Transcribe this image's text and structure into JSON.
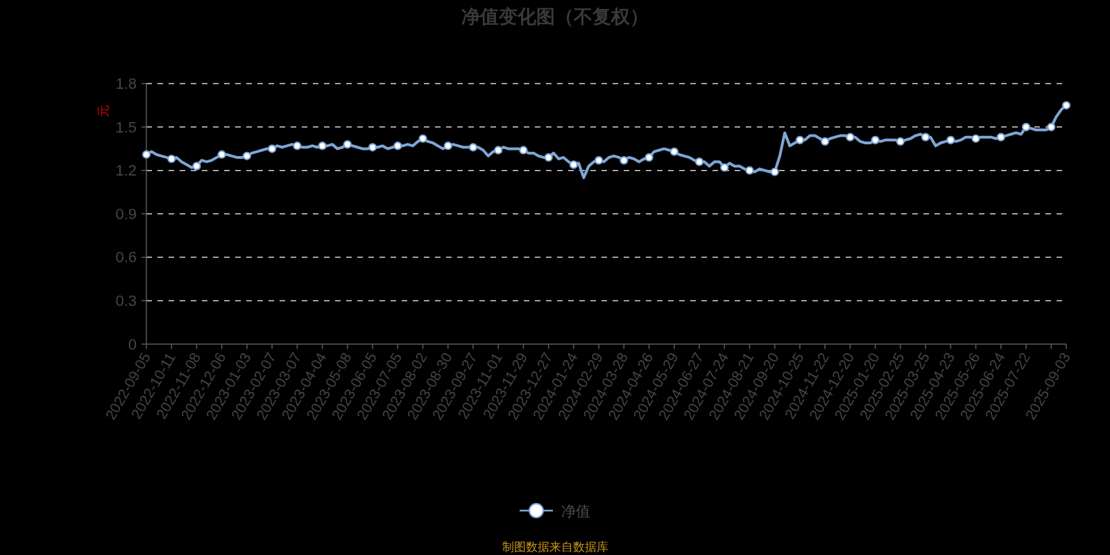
{
  "chart_data": {
    "type": "line",
    "title": "净值变化图（不复权）",
    "ylabel": "元",
    "categories": [
      "2022-09-05",
      null,
      null,
      null,
      null,
      "2022-10-11",
      null,
      null,
      null,
      null,
      "2022-11-08",
      null,
      null,
      null,
      null,
      "2022-12-06",
      null,
      null,
      null,
      null,
      "2023-01-03",
      null,
      null,
      null,
      null,
      "2023-02-07",
      null,
      null,
      null,
      null,
      "2023-03-07",
      null,
      null,
      null,
      null,
      "2023-04-04",
      null,
      null,
      null,
      null,
      "2023-05-08",
      null,
      null,
      null,
      null,
      "2023-06-05",
      null,
      null,
      null,
      null,
      "2023-07-05",
      null,
      null,
      null,
      null,
      "2023-08-02",
      null,
      null,
      null,
      null,
      "2023-08-30",
      null,
      null,
      null,
      null,
      "2023-09-27",
      null,
      null,
      null,
      null,
      "2023-11-01",
      null,
      null,
      null,
      null,
      "2023-11-29",
      null,
      null,
      null,
      null,
      "2023-12-27",
      null,
      null,
      null,
      null,
      "2024-01-24",
      null,
      null,
      null,
      null,
      "2024-02-29",
      null,
      null,
      null,
      null,
      "2024-03-28",
      null,
      null,
      null,
      null,
      "2024-04-26",
      null,
      null,
      null,
      null,
      "2024-05-29",
      null,
      null,
      null,
      null,
      "2024-06-27",
      null,
      null,
      null,
      null,
      "2024-07-24",
      null,
      null,
      null,
      null,
      "2024-08-21",
      null,
      null,
      null,
      null,
      "2024-09-20",
      null,
      null,
      null,
      null,
      "2024-10-25",
      null,
      null,
      null,
      null,
      "2024-11-22",
      null,
      null,
      null,
      null,
      "2024-12-20",
      null,
      null,
      null,
      null,
      "2025-01-20",
      null,
      null,
      null,
      null,
      "2025-02-25",
      null,
      null,
      null,
      null,
      "2025-03-25",
      null,
      null,
      null,
      null,
      "2025-04-23",
      null,
      null,
      null,
      null,
      "2025-05-26",
      null,
      null,
      null,
      null,
      "2025-06-24",
      null,
      null,
      null,
      null,
      "2025-07-22",
      null,
      null,
      null,
      null,
      null,
      null,
      null,
      "2025-09-03"
    ],
    "series": [
      {
        "name": "净值",
        "color": "#7ea6d6",
        "values": [
          1.31,
          1.33,
          1.31,
          1.3,
          1.29,
          1.28,
          1.29,
          1.26,
          1.24,
          1.22,
          1.23,
          1.27,
          1.26,
          1.27,
          1.29,
          1.31,
          1.31,
          1.3,
          1.29,
          1.29,
          1.3,
          1.32,
          1.33,
          1.34,
          1.35,
          1.35,
          1.37,
          1.36,
          1.37,
          1.38,
          1.37,
          1.36,
          1.36,
          1.37,
          1.36,
          1.37,
          1.37,
          1.38,
          1.35,
          1.36,
          1.38,
          1.37,
          1.36,
          1.35,
          1.35,
          1.36,
          1.36,
          1.37,
          1.35,
          1.36,
          1.37,
          1.37,
          1.38,
          1.37,
          1.4,
          1.42,
          1.4,
          1.39,
          1.37,
          1.35,
          1.37,
          1.38,
          1.37,
          1.36,
          1.36,
          1.36,
          1.36,
          1.34,
          1.3,
          1.33,
          1.34,
          1.36,
          1.35,
          1.35,
          1.35,
          1.34,
          1.32,
          1.32,
          1.3,
          1.29,
          1.29,
          1.32,
          1.28,
          1.29,
          1.26,
          1.24,
          1.25,
          1.15,
          1.23,
          1.26,
          1.27,
          1.26,
          1.29,
          1.3,
          1.29,
          1.27,
          1.29,
          1.28,
          1.26,
          1.28,
          1.29,
          1.33,
          1.34,
          1.35,
          1.34,
          1.33,
          1.31,
          1.3,
          1.29,
          1.27,
          1.26,
          1.26,
          1.23,
          1.26,
          1.26,
          1.22,
          1.25,
          1.23,
          1.23,
          1.21,
          1.2,
          1.19,
          1.21,
          1.2,
          1.19,
          1.19,
          1.3,
          1.46,
          1.37,
          1.39,
          1.41,
          1.41,
          1.44,
          1.44,
          1.42,
          1.4,
          1.42,
          1.43,
          1.44,
          1.44,
          1.43,
          1.43,
          1.4,
          1.39,
          1.39,
          1.41,
          1.4,
          1.41,
          1.41,
          1.41,
          1.4,
          1.41,
          1.42,
          1.44,
          1.45,
          1.43,
          1.43,
          1.37,
          1.39,
          1.4,
          1.41,
          1.4,
          1.41,
          1.43,
          1.43,
          1.42,
          1.43,
          1.43,
          1.43,
          1.42,
          1.43,
          1.44,
          1.45,
          1.46,
          1.45,
          1.5,
          1.49,
          1.48,
          1.48,
          1.48,
          1.5,
          1.57,
          1.62,
          1.65
        ]
      },
      {
        "type": "scatter",
        "color": "#7ea6d6",
        "marker": "circle",
        "values": [
          1.31,
          null,
          null,
          null,
          null,
          1.28,
          null,
          null,
          null,
          null,
          1.23,
          null,
          null,
          null,
          null,
          1.31,
          null,
          null,
          null,
          null,
          1.3,
          null,
          null,
          null,
          null,
          1.35,
          null,
          null,
          null,
          null,
          1.37,
          null,
          null,
          null,
          null,
          1.37,
          null,
          null,
          null,
          null,
          1.38,
          null,
          null,
          null,
          null,
          1.36,
          null,
          null,
          null,
          null,
          1.37,
          null,
          null,
          null,
          null,
          1.42,
          null,
          null,
          null,
          null,
          1.37,
          null,
          null,
          null,
          null,
          1.36,
          null,
          null,
          null,
          null,
          1.34,
          null,
          null,
          null,
          null,
          1.34,
          null,
          null,
          null,
          null,
          1.29,
          null,
          null,
          null,
          null,
          1.24,
          null,
          null,
          null,
          null,
          1.27,
          null,
          null,
          null,
          null,
          1.27,
          null,
          null,
          null,
          null,
          1.29,
          null,
          null,
          null,
          null,
          1.33,
          null,
          null,
          null,
          null,
          1.26,
          null,
          null,
          null,
          null,
          1.22,
          null,
          null,
          null,
          null,
          1.2,
          null,
          null,
          null,
          null,
          1.19,
          null,
          null,
          null,
          null,
          1.41,
          null,
          null,
          null,
          null,
          1.4,
          null,
          null,
          null,
          null,
          1.43,
          null,
          null,
          null,
          null,
          1.41,
          null,
          null,
          null,
          null,
          1.4,
          null,
          null,
          null,
          null,
          1.43,
          null,
          null,
          null,
          null,
          1.41,
          null,
          null,
          null,
          null,
          1.42,
          null,
          null,
          null,
          null,
          1.43,
          null,
          null,
          null,
          null,
          1.5,
          null,
          null,
          null,
          null,
          1.5,
          null,
          null,
          1.65
        ]
      }
    ],
    "ylim": [
      0,
      1.8
    ],
    "yticks": [
      0,
      0.3,
      0.6,
      0.9,
      1.2,
      1.5,
      1.8
    ],
    "grid": "y",
    "legend": "bottom",
    "line_style": "solid",
    "annotations": [
      "制图数据来自数据库"
    ]
  }
}
